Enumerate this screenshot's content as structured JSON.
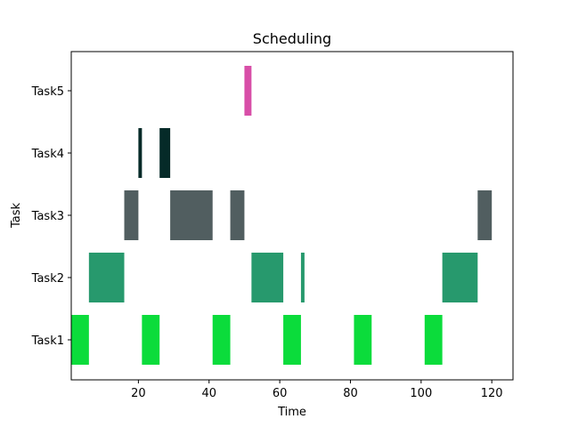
{
  "chart_data": {
    "type": "bar",
    "orientation": "horizontal-timeline",
    "title": "Scheduling",
    "xlabel": "Time",
    "ylabel": "Task",
    "xlim": [
      1,
      126
    ],
    "xticks": [
      20,
      40,
      60,
      80,
      100,
      120
    ],
    "grid": false,
    "categories": [
      "Task1",
      "Task2",
      "Task3",
      "Task4",
      "Task5"
    ],
    "series": [
      {
        "task": "Task1",
        "color": "#0bdc3b",
        "segments": [
          [
            1,
            6
          ],
          [
            21,
            26
          ],
          [
            41,
            46
          ],
          [
            61,
            66
          ],
          [
            81,
            86
          ],
          [
            101,
            106
          ]
        ]
      },
      {
        "task": "Task2",
        "color": "#27996d",
        "segments": [
          [
            6,
            16
          ],
          [
            52,
            61
          ],
          [
            66,
            67
          ],
          [
            106,
            116
          ]
        ]
      },
      {
        "task": "Task3",
        "color": "#515e60",
        "segments": [
          [
            16,
            20
          ],
          [
            29,
            41
          ],
          [
            46,
            50
          ],
          [
            116,
            120
          ]
        ]
      },
      {
        "task": "Task4",
        "color": "#052a28",
        "segments": [
          [
            20,
            21
          ],
          [
            26,
            29
          ]
        ]
      },
      {
        "task": "Task5",
        "color": "#d84fa8",
        "segments": [
          [
            50,
            52
          ]
        ]
      }
    ]
  }
}
